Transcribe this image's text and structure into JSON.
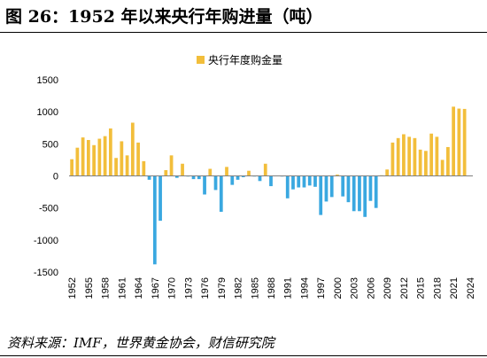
{
  "title": "图 26：1952 年以来央行年购进量（吨）",
  "source": "资料来源：IMF，世界黄金协会，财信研究院",
  "colors": {
    "positive": "#F2BE3B",
    "negative": "#3AA8E0",
    "axis": "#7f7f7f",
    "text": "#000000"
  },
  "chart_data": {
    "type": "bar",
    "legend": [
      "央行年度购金量"
    ],
    "legend_position": "top-right",
    "grid": false,
    "ylim": [
      -1500,
      1500
    ],
    "yticks": [
      -1500,
      -1000,
      -500,
      0,
      500,
      1000,
      1500
    ],
    "xtick_labels": [
      "1952",
      "1955",
      "1958",
      "1961",
      "1964",
      "1967",
      "1970",
      "1973",
      "1976",
      "1979",
      "1982",
      "1985",
      "1988",
      "1991",
      "1994",
      "1997",
      "2000",
      "2003",
      "2006",
      "2009",
      "2012",
      "2015",
      "2018",
      "2021",
      "2024"
    ],
    "series": [
      {
        "name": "央行年度购金量",
        "x": [
          1952,
          1953,
          1954,
          1955,
          1956,
          1957,
          1958,
          1959,
          1960,
          1961,
          1962,
          1963,
          1964,
          1965,
          1966,
          1967,
          1968,
          1969,
          1970,
          1971,
          1972,
          1973,
          1974,
          1975,
          1976,
          1977,
          1978,
          1979,
          1980,
          1981,
          1982,
          1983,
          1984,
          1985,
          1986,
          1987,
          1988,
          1989,
          1990,
          1991,
          1992,
          1993,
          1994,
          1995,
          1996,
          1997,
          1998,
          1999,
          2000,
          2001,
          2002,
          2003,
          2004,
          2005,
          2006,
          2007,
          2008,
          2009,
          2010,
          2011,
          2012,
          2013,
          2014,
          2015,
          2016,
          2017,
          2018,
          2019,
          2020,
          2021,
          2022,
          2023,
          2024
        ],
        "values": [
          260,
          440,
          600,
          560,
          480,
          580,
          620,
          740,
          280,
          540,
          320,
          830,
          520,
          230,
          -60,
          -1380,
          -700,
          90,
          320,
          -30,
          190,
          -10,
          -50,
          -50,
          -290,
          110,
          -220,
          -560,
          140,
          -140,
          -60,
          -20,
          80,
          -10,
          -80,
          190,
          -160,
          0,
          -10,
          -350,
          -210,
          -180,
          -180,
          -150,
          -170,
          -610,
          -400,
          -330,
          20,
          -320,
          -410,
          -550,
          -550,
          -640,
          -390,
          -500,
          10,
          100,
          520,
          590,
          650,
          610,
          590,
          410,
          390,
          660,
          610,
          250,
          450,
          1080,
          1050,
          1045,
          0
        ]
      }
    ]
  }
}
